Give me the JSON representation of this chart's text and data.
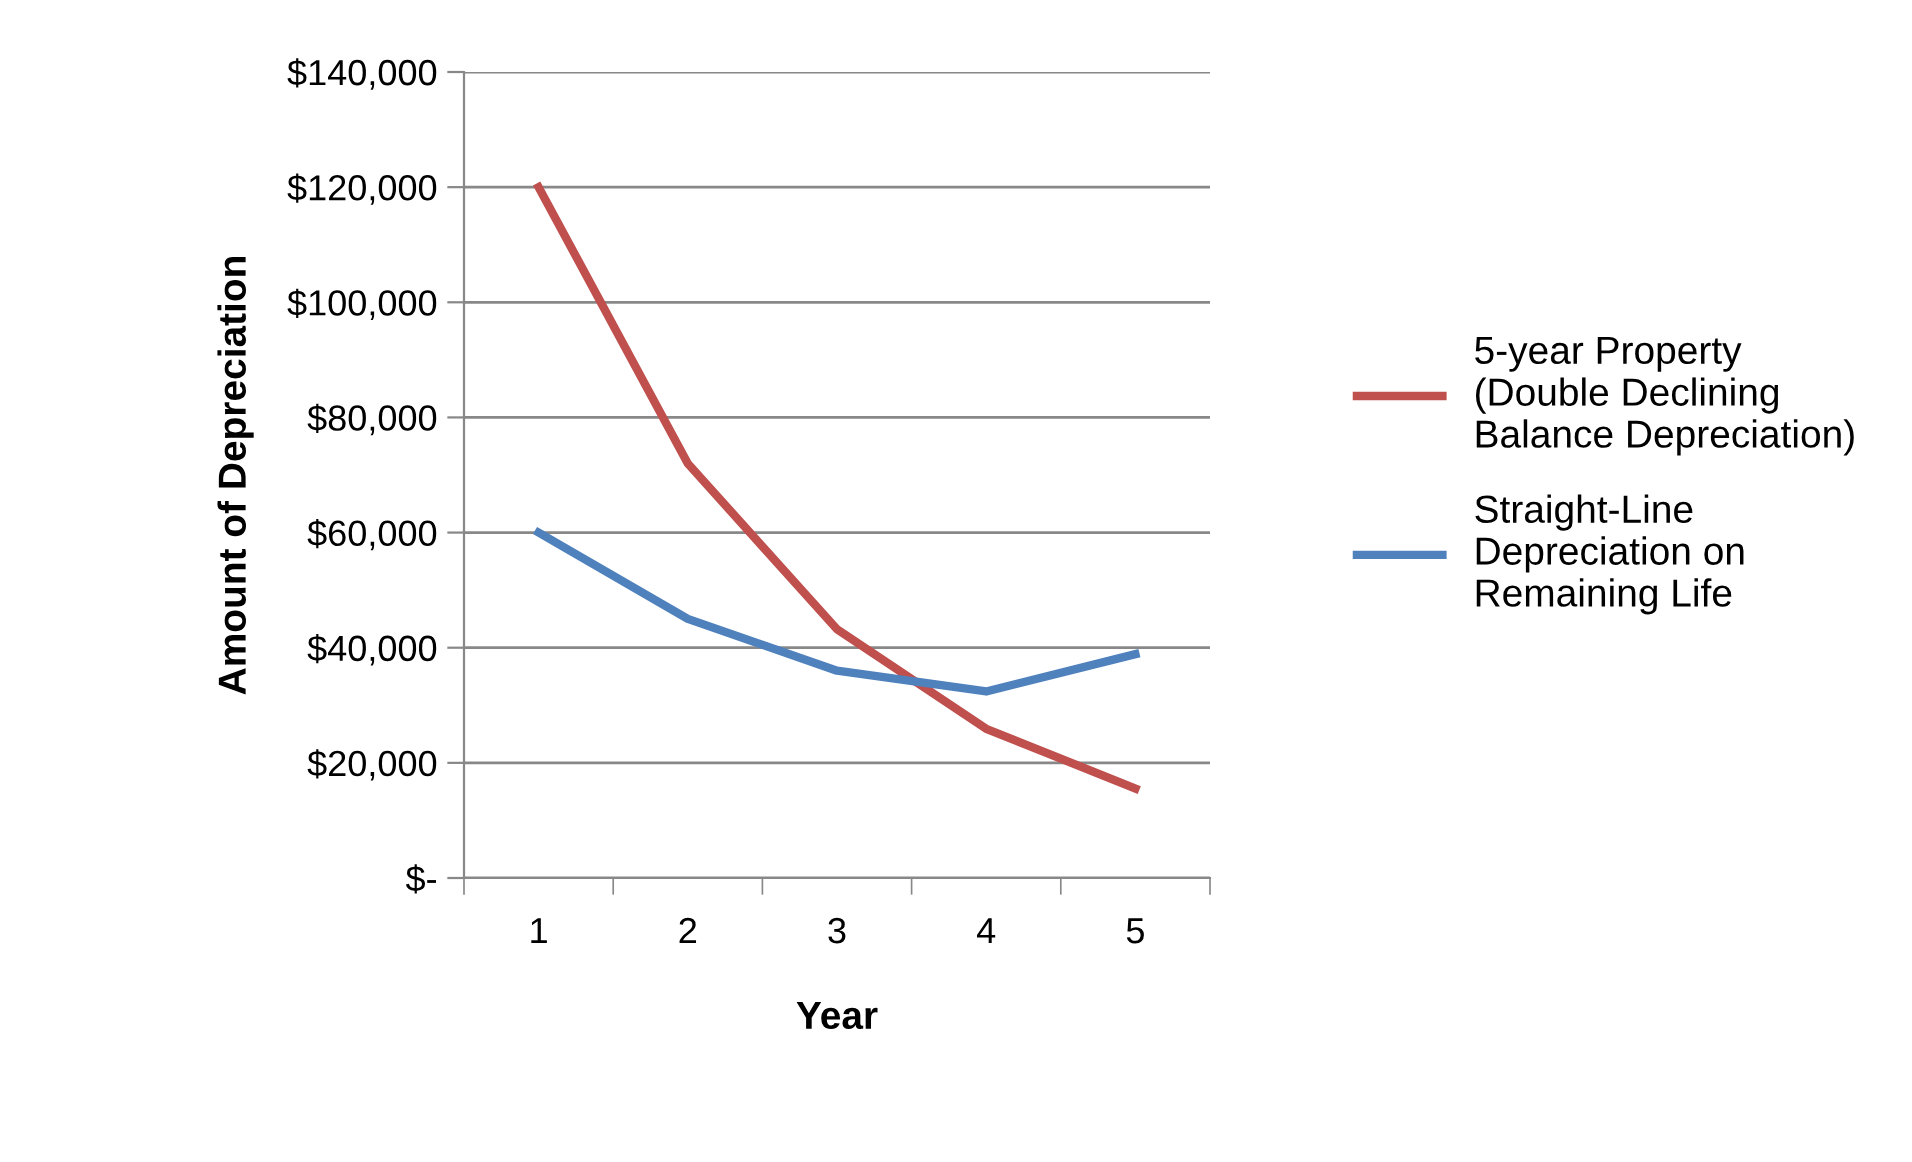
{
  "chart_data": {
    "type": "line",
    "xlabel": "Year",
    "ylabel": "Amount of Depreciation",
    "categories": [
      "1",
      "2",
      "3",
      "4",
      "5"
    ],
    "series": [
      {
        "name": "5-year Property\n(Double Declining\nBalance Depreciation)",
        "color": "#c0504d",
        "values": [
          120000,
          72000,
          43200,
          25920,
          15552
        ]
      },
      {
        "name": "Straight-Line\nDepreciation on\nRemaining Life",
        "color": "#4f81bd",
        "values": [
          60000,
          45000,
          36000,
          32400,
          38880
        ]
      }
    ],
    "ylim": [
      0,
      140000
    ],
    "yticks": [
      {
        "value": 0,
        "label": "$-"
      },
      {
        "value": 20000,
        "label": "$20,000"
      },
      {
        "value": 40000,
        "label": "$40,000"
      },
      {
        "value": 60000,
        "label": "$60,000"
      },
      {
        "value": 80000,
        "label": "$80,000"
      },
      {
        "value": 100000,
        "label": "$100,000"
      },
      {
        "value": 120000,
        "label": "$120,000"
      },
      {
        "value": 140000,
        "label": "$140,000"
      }
    ],
    "grid": "y",
    "legend": "right",
    "marker": "none",
    "line_style": "solid"
  }
}
